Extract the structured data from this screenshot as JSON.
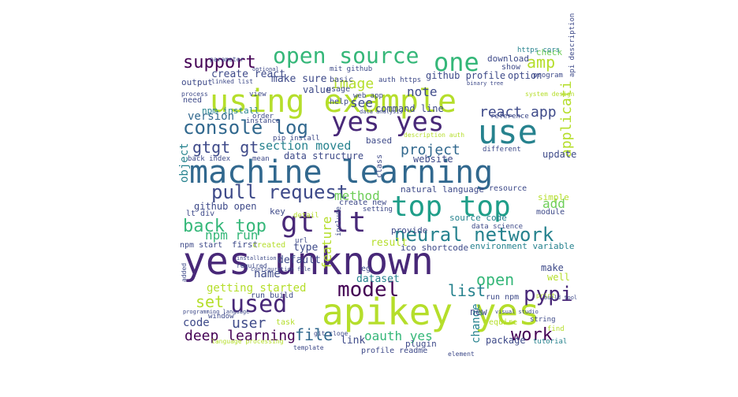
{
  "wordcloud": {
    "background": "#ffffff",
    "palette": [
      "#440154",
      "#482878",
      "#3e4a89",
      "#31688e",
      "#26828e",
      "#1f9e89",
      "#35b779",
      "#6ece58",
      "#b5de2b",
      "#fde725"
    ],
    "words": [
      {
        "text": "yes unknown",
        "color": "#482878"
      },
      {
        "text": "apikey yes",
        "color": "#b5de2b"
      },
      {
        "text": "machine learning",
        "color": "#31688e"
      },
      {
        "text": "using example",
        "color": "#b5de2b"
      },
      {
        "text": "top top",
        "color": "#1f9e89"
      },
      {
        "text": "yes yes",
        "color": "#482878"
      },
      {
        "text": "use",
        "color": "#26828e"
      },
      {
        "text": "gt lt",
        "color": "#482878"
      },
      {
        "text": "one",
        "color": "#35b779"
      },
      {
        "text": "open source",
        "color": "#35b779"
      },
      {
        "text": "neural network",
        "color": "#26828e"
      },
      {
        "text": "console log",
        "color": "#31688e"
      },
      {
        "text": "used",
        "color": "#482878"
      },
      {
        "text": "model",
        "color": "#440154"
      },
      {
        "text": "pull request",
        "color": "#3e4a89"
      },
      {
        "text": "back top",
        "color": "#35b779"
      },
      {
        "text": "support",
        "color": "#440154"
      },
      {
        "text": "gtgt gt",
        "color": "#3e4a89"
      },
      {
        "text": "work",
        "color": "#440154"
      },
      {
        "text": "pypi",
        "color": "#482878"
      },
      {
        "text": "open",
        "color": "#35b779"
      },
      {
        "text": "set",
        "color": "#b5de2b"
      },
      {
        "text": "file",
        "color": "#31688e"
      },
      {
        "text": "user",
        "color": "#3e4a89"
      },
      {
        "text": "deep learning",
        "color": "#440154"
      },
      {
        "text": "image",
        "color": "#b5de2b"
      },
      {
        "text": "amp",
        "color": "#b5de2b"
      },
      {
        "text": "react app",
        "color": "#3e4a89"
      },
      {
        "text": "project",
        "color": "#31688e"
      },
      {
        "text": "section moved",
        "color": "#26828e"
      },
      {
        "text": "method",
        "color": "#6ece58"
      },
      {
        "text": "list",
        "color": "#26828e"
      },
      {
        "text": "applicati",
        "color": "#b5de2b"
      },
      {
        "text": "note",
        "color": "#3e4a89"
      },
      {
        "text": "add",
        "color": "#6ece58"
      },
      {
        "text": "npm run",
        "color": "#35b779"
      },
      {
        "text": "getting started",
        "color": "#b5de2b"
      },
      {
        "text": "oauth yes",
        "color": "#35b779"
      },
      {
        "text": "feature",
        "color": "#b5de2b"
      },
      {
        "text": "version",
        "color": "#31688e"
      },
      {
        "text": "object",
        "color": "#26828e"
      },
      {
        "text": "change",
        "color": "#26828e"
      },
      {
        "text": "create react",
        "color": "#3e4a89"
      },
      {
        "text": "make sure",
        "color": "#3e4a89"
      },
      {
        "text": "github profile",
        "color": "#3e4a89"
      },
      {
        "text": "option",
        "color": "#3e4a89"
      },
      {
        "text": "value",
        "color": "#3e4a89"
      },
      {
        "text": "see",
        "color": "#3e4a89"
      },
      {
        "text": "name",
        "color": "#3e4a89"
      },
      {
        "text": "dataset",
        "color": "#26828e"
      },
      {
        "text": "result",
        "color": "#b5de2b"
      },
      {
        "text": "type",
        "color": "#3e4a89"
      },
      {
        "text": "default",
        "color": "#3e4a89"
      },
      {
        "text": "code",
        "color": "#3e4a89"
      },
      {
        "text": "link",
        "color": "#3e4a89"
      },
      {
        "text": "update",
        "color": "#3e4a89"
      },
      {
        "text": "website",
        "color": "#3e4a89"
      },
      {
        "text": "github open",
        "color": "#3e4a89"
      },
      {
        "text": "natural language",
        "color": "#3e4a89"
      },
      {
        "text": "ico shortcode",
        "color": "#3e4a89"
      },
      {
        "text": "environment variable",
        "color": "#26828e"
      },
      {
        "text": "package",
        "color": "#3e4a89"
      },
      {
        "text": "check",
        "color": "#6ece58"
      },
      {
        "text": "download",
        "color": "#3e4a89"
      },
      {
        "text": "data structure",
        "color": "#3e4a89"
      },
      {
        "text": "command line",
        "color": "#3e4a89"
      },
      {
        "text": "npm install",
        "color": "#26828e"
      },
      {
        "text": "based",
        "color": "#3e4a89"
      },
      {
        "text": "source code",
        "color": "#26828e"
      },
      {
        "text": "provide",
        "color": "#3e4a89"
      },
      {
        "text": "make",
        "color": "#3e4a89"
      },
      {
        "text": "new",
        "color": "#3e4a89"
      },
      {
        "text": "key",
        "color": "#3e4a89"
      },
      {
        "text": "module",
        "color": "#3e4a89"
      },
      {
        "text": "resource",
        "color": "#3e4a89"
      },
      {
        "text": "create new",
        "color": "#3e4a89"
      },
      {
        "text": "plugin",
        "color": "#3e4a89"
      },
      {
        "text": "tutorial",
        "color": "#26828e"
      },
      {
        "text": "output",
        "color": "#3e4a89"
      },
      {
        "text": "need",
        "color": "#3e4a89"
      },
      {
        "text": "back index",
        "color": "#3e4a89"
      },
      {
        "text": "pip install",
        "color": "#3e4a89"
      },
      {
        "text": "lt div",
        "color": "#3e4a89"
      },
      {
        "text": "npm start",
        "color": "#3e4a89"
      },
      {
        "text": "first",
        "color": "#3e4a89"
      },
      {
        "text": "created",
        "color": "#b5de2b"
      },
      {
        "text": "run build",
        "color": "#3e4a89"
      },
      {
        "text": "task",
        "color": "#b5de2b"
      },
      {
        "text": "profile readme",
        "color": "#3e4a89"
      },
      {
        "text": "run npm",
        "color": "#3e4a89"
      },
      {
        "text": "require",
        "color": "#b5de2b"
      },
      {
        "text": "well",
        "color": "#b5de2b"
      },
      {
        "text": "simple",
        "color": "#b5de2b"
      },
      {
        "text": "order",
        "color": "#3e4a89"
      },
      {
        "text": "help",
        "color": "#3e4a89"
      },
      {
        "text": "usage",
        "color": "#3e4a89"
      },
      {
        "text": "basic",
        "color": "#3e4a89"
      },
      {
        "text": "web app",
        "color": "#3e4a89"
      },
      {
        "text": "mit github",
        "color": "#3e4a89"
      },
      {
        "text": "auth https",
        "color": "#3e4a89"
      },
      {
        "text": "show",
        "color": "#3e4a89"
      },
      {
        "text": "reference",
        "color": "#3e4a89"
      },
      {
        "text": "different",
        "color": "#3e4a89"
      },
      {
        "text": "class",
        "color": "#3e4a89"
      },
      {
        "text": "https cors",
        "color": "#26828e"
      },
      {
        "text": "program",
        "color": "#3e4a89"
      },
      {
        "text": "api description",
        "color": "#3e4a89"
      },
      {
        "text": "detail",
        "color": "#b5de2b"
      },
      {
        "text": "include",
        "color": "#3e4a89"
      },
      {
        "text": "eg",
        "color": "#3e4a89"
      },
      {
        "text": "url",
        "color": "#3e4a89"
      },
      {
        "text": "setting",
        "color": "#3e4a89"
      },
      {
        "text": "data science",
        "color": "#3e4a89"
      },
      {
        "text": "element",
        "color": "#3e4a89"
      },
      {
        "text": "string",
        "color": "#3e4a89"
      },
      {
        "text": "find",
        "color": "#b5de2b"
      },
      {
        "text": "mean",
        "color": "#3e4a89"
      },
      {
        "text": "view",
        "color": "#3e4a89"
      },
      {
        "text": "instance",
        "color": "#3e4a89"
      },
      {
        "text": "window",
        "color": "#3e4a89"
      },
      {
        "text": "template",
        "color": "#3e4a89"
      },
      {
        "text": "language processing",
        "color": "#b5de2b"
      },
      {
        "text": "linked list",
        "color": "#3e4a89"
      },
      {
        "text": "parameter",
        "color": "#3e4a89"
      },
      {
        "text": "process",
        "color": "#3e4a89"
      },
      {
        "text": "added",
        "color": "#3e4a89"
      },
      {
        "text": "required",
        "color": "#3e4a89"
      },
      {
        "text": "print",
        "color": "#b5de2b"
      },
      {
        "text": "git clone",
        "color": "#3e4a89"
      },
      {
        "text": "data analysis",
        "color": "#3e4a89"
      },
      {
        "text": "description auth",
        "color": "#b5de2b"
      },
      {
        "text": "system design",
        "color": "#b5de2b"
      },
      {
        "text": "visual studio",
        "color": "#3e4a89"
      },
      {
        "text": "configuration file",
        "color": "#3e4a89"
      },
      {
        "text": "programming language",
        "color": "#3e4a89"
      },
      {
        "text": "build tool",
        "color": "#3e4a89"
      },
      {
        "text": "binary tree",
        "color": "#3e4a89"
      },
      {
        "text": "optional",
        "color": "#3e4a89"
      },
      {
        "text": "installation",
        "color": "#3e4a89"
      }
    ]
  }
}
